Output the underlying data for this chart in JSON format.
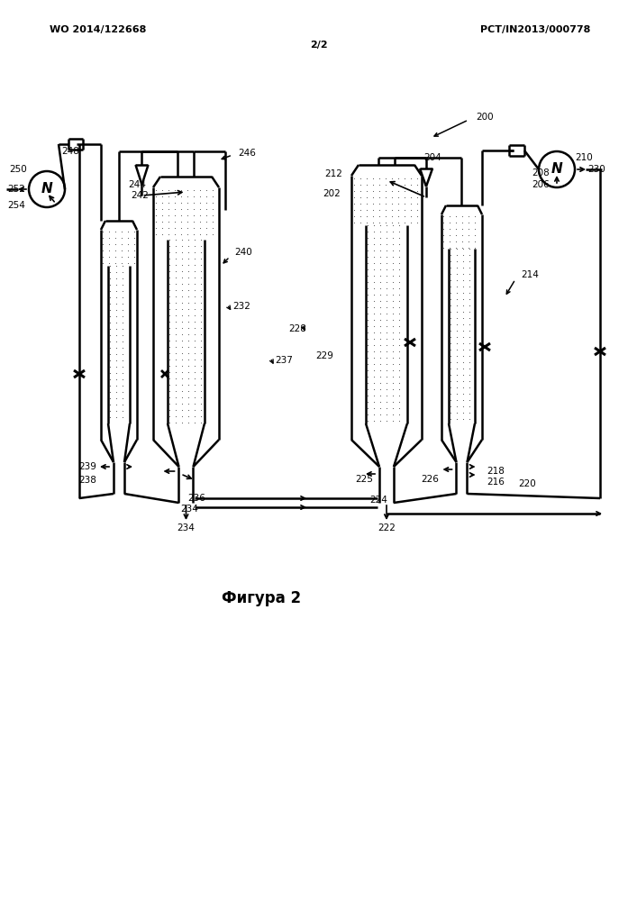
{
  "header_left": "WO 2014/122668",
  "header_right": "PCT/IN2013/000778",
  "header_center": "2/2",
  "figure_label": "Фигура 2",
  "bg_color": "#ffffff"
}
